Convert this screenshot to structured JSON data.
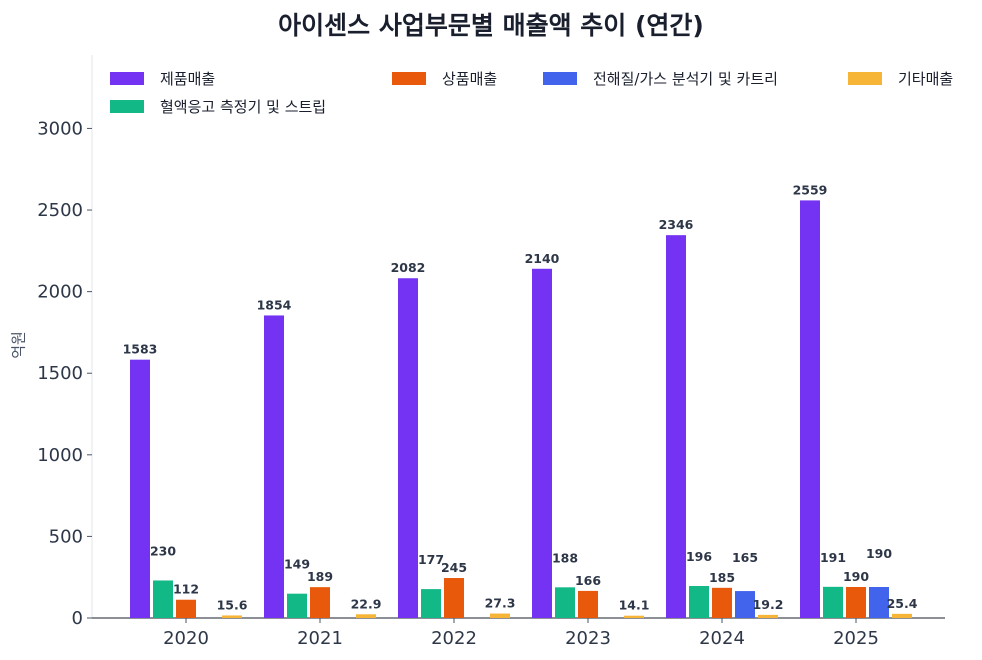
{
  "chart_data": {
    "type": "bar",
    "title": "아이센스 사업부문별 매출액 추이 (연간)",
    "ylabel": "억원",
    "xlabel": "",
    "ylim": [
      0,
      3450
    ],
    "yticks": [
      0,
      500,
      1000,
      1500,
      2000,
      2500,
      3000
    ],
    "grid": false,
    "legend_position": "top",
    "categories": [
      "2020",
      "2021",
      "2022",
      "2023",
      "2024",
      "2025"
    ],
    "series": [
      {
        "name": "제품매출",
        "color": "#7433f2",
        "values": [
          1583,
          1854,
          2082,
          2140,
          2346,
          2559
        ]
      },
      {
        "name": "혈액응고 측정기 및 스트립",
        "color": "#13b887",
        "values": [
          230,
          149,
          177,
          188,
          196,
          191
        ]
      },
      {
        "name": "상품매출",
        "color": "#e8590c",
        "values": [
          112,
          189,
          245,
          166,
          185,
          190
        ]
      },
      {
        "name": "전해질/가스 분석기 및 카트리",
        "color": "#4263eb",
        "values": [
          null,
          null,
          null,
          null,
          165,
          190
        ]
      },
      {
        "name": "기타매출",
        "color": "#f7b538",
        "values": [
          15.6,
          22.9,
          27.3,
          14.1,
          19.2,
          25.4
        ]
      }
    ]
  }
}
